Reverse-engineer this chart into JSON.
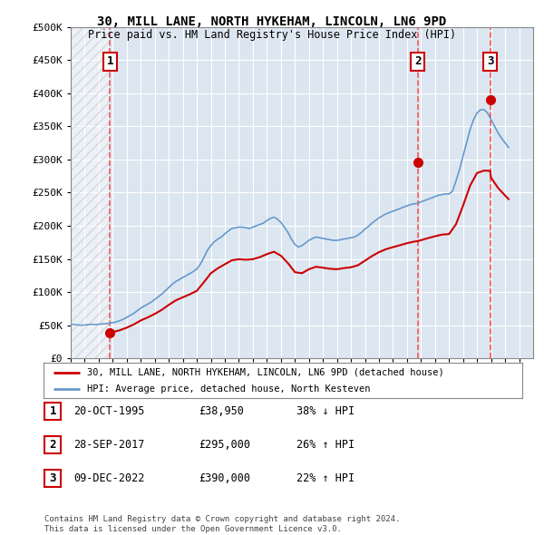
{
  "title": "30, MILL LANE, NORTH HYKEHAM, LINCOLN, LN6 9PD",
  "subtitle": "Price paid vs. HM Land Registry's House Price Index (HPI)",
  "ylim": [
    0,
    500000
  ],
  "yticks": [
    0,
    50000,
    100000,
    150000,
    200000,
    250000,
    300000,
    350000,
    400000,
    450000,
    500000
  ],
  "xlim_start": 1993.0,
  "xlim_end": 2026.0,
  "plot_bg_color": "#dce6f1",
  "grid_color": "#ffffff",
  "sale_points": [
    {
      "year": 1995.8,
      "price": 38950,
      "label": "1"
    },
    {
      "year": 2017.75,
      "price": 295000,
      "label": "2"
    },
    {
      "year": 2022.93,
      "price": 390000,
      "label": "3"
    }
  ],
  "vline_color": "#ff4444",
  "sale_marker_color": "#cc0000",
  "hpi_line_color": "#6699cc",
  "house_line_color": "#cc0000",
  "legend_label_house": "30, MILL LANE, NORTH HYKEHAM, LINCOLN, LN6 9PD (detached house)",
  "legend_label_hpi": "HPI: Average price, detached house, North Kesteven",
  "table_entries": [
    {
      "num": "1",
      "date": "20-OCT-1995",
      "price": "£38,950",
      "pct": "38% ↓ HPI"
    },
    {
      "num": "2",
      "date": "28-SEP-2017",
      "price": "£295,000",
      "pct": "26% ↑ HPI"
    },
    {
      "num": "3",
      "date": "09-DEC-2022",
      "price": "£390,000",
      "pct": "22% ↑ HPI"
    }
  ],
  "footer": "Contains HM Land Registry data © Crown copyright and database right 2024.\nThis data is licensed under the Open Government Licence v3.0.",
  "hpi_data_x": [
    1993.0,
    1993.25,
    1993.5,
    1993.75,
    1994.0,
    1994.25,
    1994.5,
    1994.75,
    1995.0,
    1995.25,
    1995.5,
    1995.75,
    1996.0,
    1996.25,
    1996.5,
    1996.75,
    1997.0,
    1997.25,
    1997.5,
    1997.75,
    1998.0,
    1998.25,
    1998.5,
    1998.75,
    1999.0,
    1999.25,
    1999.5,
    1999.75,
    2000.0,
    2000.25,
    2000.5,
    2000.75,
    2001.0,
    2001.25,
    2001.5,
    2001.75,
    2002.0,
    2002.25,
    2002.5,
    2002.75,
    2003.0,
    2003.25,
    2003.5,
    2003.75,
    2004.0,
    2004.25,
    2004.5,
    2004.75,
    2005.0,
    2005.25,
    2005.5,
    2005.75,
    2006.0,
    2006.25,
    2006.5,
    2006.75,
    2007.0,
    2007.25,
    2007.5,
    2007.75,
    2008.0,
    2008.25,
    2008.5,
    2008.75,
    2009.0,
    2009.25,
    2009.5,
    2009.75,
    2010.0,
    2010.25,
    2010.5,
    2010.75,
    2011.0,
    2011.25,
    2011.5,
    2011.75,
    2012.0,
    2012.25,
    2012.5,
    2012.75,
    2013.0,
    2013.25,
    2013.5,
    2013.75,
    2014.0,
    2014.25,
    2014.5,
    2014.75,
    2015.0,
    2015.25,
    2015.5,
    2015.75,
    2016.0,
    2016.25,
    2016.5,
    2016.75,
    2017.0,
    2017.25,
    2017.5,
    2017.75,
    2018.0,
    2018.25,
    2018.5,
    2018.75,
    2019.0,
    2019.25,
    2019.5,
    2019.75,
    2020.0,
    2020.25,
    2020.5,
    2020.75,
    2021.0,
    2021.25,
    2021.5,
    2021.75,
    2022.0,
    2022.25,
    2022.5,
    2022.75,
    2023.0,
    2023.25,
    2023.5,
    2023.75,
    2024.0,
    2024.25
  ],
  "hpi_data_y": [
    52000,
    51000,
    50500,
    50000,
    50500,
    51000,
    51500,
    51000,
    51500,
    52000,
    52500,
    53000,
    54000,
    55000,
    57000,
    59000,
    62000,
    65000,
    68000,
    72000,
    76000,
    79000,
    82000,
    85000,
    89000,
    93000,
    97000,
    102000,
    107000,
    112000,
    116000,
    119000,
    122000,
    125000,
    128000,
    131000,
    135000,
    142000,
    152000,
    163000,
    170000,
    176000,
    180000,
    183000,
    188000,
    192000,
    196000,
    197000,
    198000,
    198000,
    197000,
    196000,
    198000,
    200000,
    202000,
    204000,
    208000,
    211000,
    213000,
    210000,
    205000,
    198000,
    190000,
    180000,
    172000,
    168000,
    170000,
    174000,
    178000,
    181000,
    183000,
    182000,
    181000,
    180000,
    179000,
    178000,
    178000,
    179000,
    180000,
    181000,
    182000,
    183000,
    186000,
    190000,
    195000,
    199000,
    204000,
    208000,
    212000,
    215000,
    218000,
    220000,
    222000,
    224000,
    226000,
    228000,
    230000,
    232000,
    233000,
    234000,
    236000,
    238000,
    240000,
    242000,
    244000,
    246000,
    247000,
    248000,
    248000,
    252000,
    268000,
    285000,
    305000,
    325000,
    345000,
    360000,
    370000,
    375000,
    375000,
    370000,
    360000,
    350000,
    340000,
    332000,
    325000,
    318000
  ],
  "hpi_indexed_x": [
    1995.8,
    1996.0,
    1996.5,
    1997.0,
    1997.5,
    1998.0,
    1998.5,
    1999.0,
    1999.5,
    2000.0,
    2000.5,
    2001.0,
    2001.5,
    2002.0,
    2002.5,
    2003.0,
    2003.5,
    2004.0,
    2004.5,
    2005.0,
    2005.5,
    2006.0,
    2006.5,
    2007.0,
    2007.5,
    2008.0,
    2008.5,
    2009.0,
    2009.5,
    2010.0,
    2010.5,
    2011.0,
    2011.5,
    2012.0,
    2012.5,
    2013.0,
    2013.5,
    2014.0,
    2014.5,
    2015.0,
    2015.5,
    2016.0,
    2016.5,
    2017.0,
    2017.5,
    2017.75,
    2018.0,
    2018.5,
    2019.0,
    2019.5,
    2020.0,
    2020.5,
    2021.0,
    2021.5,
    2022.0,
    2022.5,
    2022.93,
    2023.0,
    2023.5,
    2024.0,
    2024.25
  ],
  "hpi_indexed_y": [
    38950,
    39700,
    42500,
    46400,
    51300,
    57300,
    61900,
    67200,
    73300,
    80800,
    87600,
    92200,
    96700,
    102000,
    114800,
    128400,
    136000,
    142000,
    148000,
    149600,
    148800,
    149600,
    152800,
    157200,
    160900,
    154900,
    143700,
    130000,
    128500,
    134500,
    138200,
    136800,
    135200,
    134500,
    136200,
    137400,
    140500,
    147400,
    154300,
    160200,
    164700,
    167800,
    170700,
    173700,
    176100,
    176900,
    178300,
    181400,
    184200,
    186700,
    187500,
    202500,
    230400,
    260400,
    279600,
    283200,
    282800,
    272400,
    257000,
    245600,
    240200
  ]
}
